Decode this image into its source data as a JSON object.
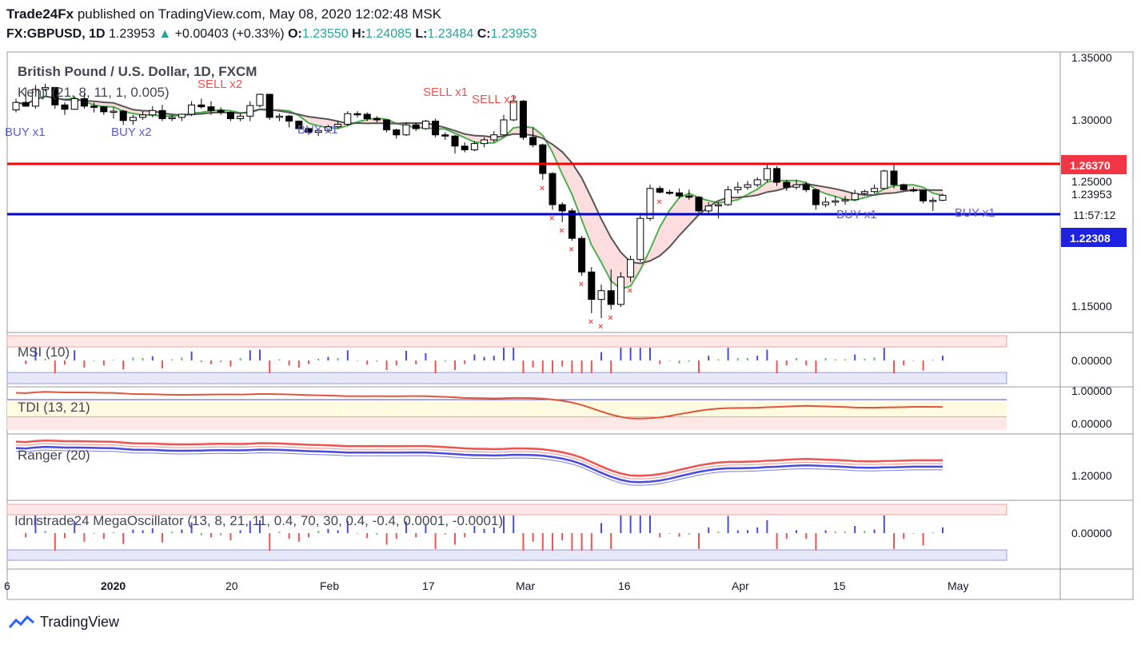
{
  "header": {
    "publisher": "Trade24Fx",
    "published_text": "published on TradingView.com, May 08, 2020 12:02:48 MSK",
    "symbol": "FX:GBPUSD, 1D",
    "last": "1.23953",
    "change": "+0.00403 (+0.33%)",
    "o_label": "O:",
    "o": "1.23550",
    "h_label": "H:",
    "h": "1.24085",
    "l_label": "L:",
    "l": "1.23484",
    "c_label": "C:",
    "c": "1.23953"
  },
  "price_pane": {
    "title": "British Pound / U.S. Dollar, 1D, FXCM",
    "indicator": "Kenji (21, 8, 11, 1, 0.005)",
    "axis_ticks": [
      "1.35000",
      "1.30000",
      "1.25000",
      "1.15000"
    ],
    "resistance_label": "1.26370",
    "support_label": "1.22308",
    "last_label": "1.23953",
    "countdown": "11:57:12",
    "signals": [
      {
        "text": "BUY x1",
        "kind": "buy"
      },
      {
        "text": "SELL x2",
        "kind": "sell"
      },
      {
        "text": "BUY x2",
        "kind": "buy"
      },
      {
        "text": "SELL x1",
        "kind": "sell"
      },
      {
        "text": "SELL x2",
        "kind": "sell"
      },
      {
        "text": "BUY x1",
        "kind": "buy"
      },
      {
        "text": "BUY x1",
        "kind": "buy"
      },
      {
        "text": "BUY x1",
        "kind": "buy"
      }
    ]
  },
  "panes": {
    "msi": {
      "title": "MSI (10)",
      "tick": "0.00000"
    },
    "tdi": {
      "title": "TDI (13, 21)",
      "ticks": [
        "1.00000",
        "0.00000"
      ]
    },
    "ranger": {
      "title": "Ranger (20)",
      "tick": "1.20000"
    },
    "mega": {
      "title": "Idnistrade24 MegaOscillator (13, 8, 21, 11, 0.4, 70, 30, 0.4, -0.4, 0.0001, -0.0001)",
      "tick": "0.00000"
    }
  },
  "x_axis": [
    "2020",
    "20",
    "Feb",
    "17",
    "Mar",
    "16",
    "Apr",
    "15",
    "May"
  ],
  "branding": "TradingView",
  "colors": {
    "up": "#ffffff",
    "down": "#000000",
    "resistance": "#ff0000",
    "support": "#0000cc",
    "buy": "#5b5bd6",
    "sell": "#ef5350",
    "label_red": "#f23645",
    "label_blue": "#1e22e0"
  },
  "chart_data": {
    "type": "candlestick",
    "title": "British Pound / U.S. Dollar, 1D, FXCM",
    "ylim": [
      1.12,
      1.36
    ],
    "resistance": 1.2637,
    "support": 1.22308,
    "candles": [
      {
        "d": "2019-12-27",
        "o": 1.308,
        "h": 1.317,
        "l": 1.306,
        "c": 1.314
      },
      {
        "d": "2019-12-30",
        "o": 1.314,
        "h": 1.326,
        "l": 1.3105,
        "c": 1.311
      },
      {
        "d": "2019-12-31",
        "o": 1.311,
        "h": 1.328,
        "l": 1.309,
        "c": 1.3245
      },
      {
        "d": "2020-01-01",
        "o": 1.3245,
        "h": 1.329,
        "l": 1.323,
        "c": 1.326
      },
      {
        "d": "2020-01-02",
        "o": 1.326,
        "h": 1.3265,
        "l": 1.309,
        "c": 1.312
      },
      {
        "d": "2020-01-03",
        "o": 1.312,
        "h": 1.314,
        "l": 1.304,
        "c": 1.3085
      },
      {
        "d": "2020-01-06",
        "o": 1.3085,
        "h": 1.319,
        "l": 1.308,
        "c": 1.317
      },
      {
        "d": "2020-01-07",
        "o": 1.317,
        "h": 1.321,
        "l": 1.309,
        "c": 1.311
      },
      {
        "d": "2020-01-08",
        "o": 1.311,
        "h": 1.314,
        "l": 1.306,
        "c": 1.3105
      },
      {
        "d": "2020-01-09",
        "o": 1.3105,
        "h": 1.311,
        "l": 1.304,
        "c": 1.3065
      },
      {
        "d": "2020-01-10",
        "o": 1.3065,
        "h": 1.31,
        "l": 1.301,
        "c": 1.307
      },
      {
        "d": "2020-01-13",
        "o": 1.307,
        "h": 1.308,
        "l": 1.296,
        "c": 1.2995
      },
      {
        "d": "2020-01-14",
        "o": 1.2995,
        "h": 1.304,
        "l": 1.296,
        "c": 1.302
      },
      {
        "d": "2020-01-15",
        "o": 1.302,
        "h": 1.307,
        "l": 1.3,
        "c": 1.304
      },
      {
        "d": "2020-01-16",
        "o": 1.304,
        "h": 1.311,
        "l": 1.302,
        "c": 1.3075
      },
      {
        "d": "2020-01-17",
        "o": 1.3075,
        "h": 1.312,
        "l": 1.299,
        "c": 1.301
      },
      {
        "d": "2020-01-20",
        "o": 1.301,
        "h": 1.304,
        "l": 1.299,
        "c": 1.302
      },
      {
        "d": "2020-01-21",
        "o": 1.302,
        "h": 1.305,
        "l": 1.299,
        "c": 1.3045
      },
      {
        "d": "2020-01-22",
        "o": 1.3045,
        "h": 1.315,
        "l": 1.303,
        "c": 1.312
      },
      {
        "d": "2020-01-23",
        "o": 1.312,
        "h": 1.317,
        "l": 1.309,
        "c": 1.3105
      },
      {
        "d": "2020-01-24",
        "o": 1.3105,
        "h": 1.315,
        "l": 1.304,
        "c": 1.3075
      },
      {
        "d": "2020-01-27",
        "o": 1.3075,
        "h": 1.31,
        "l": 1.304,
        "c": 1.306
      },
      {
        "d": "2020-01-28",
        "o": 1.306,
        "h": 1.307,
        "l": 1.299,
        "c": 1.301
      },
      {
        "d": "2020-01-29",
        "o": 1.301,
        "h": 1.305,
        "l": 1.299,
        "c": 1.303
      },
      {
        "d": "2020-01-30",
        "o": 1.303,
        "h": 1.315,
        "l": 1.299,
        "c": 1.3115
      },
      {
        "d": "2020-01-31",
        "o": 1.3115,
        "h": 1.321,
        "l": 1.31,
        "c": 1.3205
      },
      {
        "d": "2020-02-03",
        "o": 1.3205,
        "h": 1.321,
        "l": 1.3,
        "c": 1.302
      },
      {
        "d": "2020-02-04",
        "o": 1.302,
        "h": 1.305,
        "l": 1.299,
        "c": 1.303
      },
      {
        "d": "2020-02-05",
        "o": 1.303,
        "h": 1.304,
        "l": 1.294,
        "c": 1.299
      },
      {
        "d": "2020-02-06",
        "o": 1.299,
        "h": 1.2995,
        "l": 1.29,
        "c": 1.293
      },
      {
        "d": "2020-02-07",
        "o": 1.293,
        "h": 1.294,
        "l": 1.288,
        "c": 1.29
      },
      {
        "d": "2020-02-10",
        "o": 1.29,
        "h": 1.2925,
        "l": 1.287,
        "c": 1.2915
      },
      {
        "d": "2020-02-11",
        "o": 1.2915,
        "h": 1.296,
        "l": 1.29,
        "c": 1.2945
      },
      {
        "d": "2020-02-12",
        "o": 1.2945,
        "h": 1.299,
        "l": 1.293,
        "c": 1.2965
      },
      {
        "d": "2020-02-13",
        "o": 1.2965,
        "h": 1.307,
        "l": 1.295,
        "c": 1.305
      },
      {
        "d": "2020-02-14",
        "o": 1.305,
        "h": 1.307,
        "l": 1.302,
        "c": 1.3045
      },
      {
        "d": "2020-02-17",
        "o": 1.3045,
        "h": 1.306,
        "l": 1.299,
        "c": 1.301
      },
      {
        "d": "2020-02-18",
        "o": 1.301,
        "h": 1.303,
        "l": 1.298,
        "c": 1.3
      },
      {
        "d": "2020-02-19",
        "o": 1.3,
        "h": 1.3,
        "l": 1.29,
        "c": 1.292
      },
      {
        "d": "2020-02-20",
        "o": 1.292,
        "h": 1.293,
        "l": 1.285,
        "c": 1.288
      },
      {
        "d": "2020-02-21",
        "o": 1.288,
        "h": 1.298,
        "l": 1.287,
        "c": 1.296
      },
      {
        "d": "2020-02-24",
        "o": 1.296,
        "h": 1.298,
        "l": 1.291,
        "c": 1.293
      },
      {
        "d": "2020-02-25",
        "o": 1.293,
        "h": 1.3,
        "l": 1.292,
        "c": 1.299
      },
      {
        "d": "2020-02-26",
        "o": 1.299,
        "h": 1.301,
        "l": 1.286,
        "c": 1.288
      },
      {
        "d": "2020-02-27",
        "o": 1.288,
        "h": 1.29,
        "l": 1.284,
        "c": 1.287
      },
      {
        "d": "2020-02-28",
        "o": 1.287,
        "h": 1.288,
        "l": 1.273,
        "c": 1.279
      },
      {
        "d": "2020-03-02",
        "o": 1.279,
        "h": 1.282,
        "l": 1.274,
        "c": 1.276
      },
      {
        "d": "2020-03-03",
        "o": 1.276,
        "h": 1.283,
        "l": 1.275,
        "c": 1.281
      },
      {
        "d": "2020-03-04",
        "o": 1.281,
        "h": 1.286,
        "l": 1.278,
        "c": 1.284
      },
      {
        "d": "2020-03-05",
        "o": 1.284,
        "h": 1.291,
        "l": 1.282,
        "c": 1.288
      },
      {
        "d": "2020-03-06",
        "o": 1.288,
        "h": 1.304,
        "l": 1.287,
        "c": 1.3
      },
      {
        "d": "2020-03-09",
        "o": 1.3,
        "h": 1.32,
        "l": 1.299,
        "c": 1.315
      },
      {
        "d": "2020-03-10",
        "o": 1.315,
        "h": 1.316,
        "l": 1.284,
        "c": 1.286
      },
      {
        "d": "2020-03-11",
        "o": 1.286,
        "h": 1.294,
        "l": 1.278,
        "c": 1.28
      },
      {
        "d": "2020-03-12",
        "o": 1.28,
        "h": 1.281,
        "l": 1.252,
        "c": 1.257
      },
      {
        "d": "2020-03-13",
        "o": 1.257,
        "h": 1.258,
        "l": 1.228,
        "c": 1.232
      },
      {
        "d": "2020-03-16",
        "o": 1.232,
        "h": 1.234,
        "l": 1.218,
        "c": 1.227
      },
      {
        "d": "2020-03-17",
        "o": 1.227,
        "h": 1.229,
        "l": 1.203,
        "c": 1.205
      },
      {
        "d": "2020-03-18",
        "o": 1.205,
        "h": 1.207,
        "l": 1.175,
        "c": 1.178
      },
      {
        "d": "2020-03-19",
        "o": 1.178,
        "h": 1.182,
        "l": 1.145,
        "c": 1.156
      },
      {
        "d": "2020-03-20",
        "o": 1.156,
        "h": 1.168,
        "l": 1.141,
        "c": 1.163
      },
      {
        "d": "2020-03-23",
        "o": 1.163,
        "h": 1.18,
        "l": 1.148,
        "c": 1.152
      },
      {
        "d": "2020-03-24",
        "o": 1.152,
        "h": 1.178,
        "l": 1.15,
        "c": 1.174
      },
      {
        "d": "2020-03-25",
        "o": 1.174,
        "h": 1.191,
        "l": 1.17,
        "c": 1.188
      },
      {
        "d": "2020-03-26",
        "o": 1.188,
        "h": 1.224,
        "l": 1.186,
        "c": 1.221
      },
      {
        "d": "2020-03-27",
        "o": 1.221,
        "h": 1.248,
        "l": 1.219,
        "c": 1.245
      },
      {
        "d": "2020-03-30",
        "o": 1.245,
        "h": 1.247,
        "l": 1.241,
        "c": 1.242
      },
      {
        "d": "2020-03-31",
        "o": 1.242,
        "h": 1.244,
        "l": 1.24,
        "c": 1.2415
      },
      {
        "d": "2020-04-01",
        "o": 1.2415,
        "h": 1.245,
        "l": 1.237,
        "c": 1.239
      },
      {
        "d": "2020-04-02",
        "o": 1.239,
        "h": 1.244,
        "l": 1.236,
        "c": 1.238
      },
      {
        "d": "2020-04-03",
        "o": 1.238,
        "h": 1.239,
        "l": 1.225,
        "c": 1.227
      },
      {
        "d": "2020-04-06",
        "o": 1.227,
        "h": 1.234,
        "l": 1.225,
        "c": 1.231
      },
      {
        "d": "2020-04-07",
        "o": 1.231,
        "h": 1.234,
        "l": 1.221,
        "c": 1.232
      },
      {
        "d": "2020-04-08",
        "o": 1.232,
        "h": 1.247,
        "l": 1.231,
        "c": 1.244
      },
      {
        "d": "2020-04-09",
        "o": 1.244,
        "h": 1.25,
        "l": 1.241,
        "c": 1.246
      },
      {
        "d": "2020-04-10",
        "o": 1.246,
        "h": 1.251,
        "l": 1.244,
        "c": 1.248
      },
      {
        "d": "2020-04-13",
        "o": 1.248,
        "h": 1.254,
        "l": 1.246,
        "c": 1.252
      },
      {
        "d": "2020-04-14",
        "o": 1.252,
        "h": 1.264,
        "l": 1.25,
        "c": 1.261
      },
      {
        "d": "2020-04-15",
        "o": 1.261,
        "h": 1.263,
        "l": 1.247,
        "c": 1.25
      },
      {
        "d": "2020-04-16",
        "o": 1.25,
        "h": 1.252,
        "l": 1.243,
        "c": 1.246
      },
      {
        "d": "2020-04-17",
        "o": 1.246,
        "h": 1.252,
        "l": 1.244,
        "c": 1.248
      },
      {
        "d": "2020-04-20",
        "o": 1.248,
        "h": 1.25,
        "l": 1.242,
        "c": 1.244
      },
      {
        "d": "2020-04-21",
        "o": 1.244,
        "h": 1.245,
        "l": 1.228,
        "c": 1.232
      },
      {
        "d": "2020-04-22",
        "o": 1.232,
        "h": 1.238,
        "l": 1.23,
        "c": 1.234
      },
      {
        "d": "2020-04-23",
        "o": 1.234,
        "h": 1.239,
        "l": 1.231,
        "c": 1.235
      },
      {
        "d": "2020-04-24",
        "o": 1.235,
        "h": 1.239,
        "l": 1.232,
        "c": 1.236
      },
      {
        "d": "2020-04-27",
        "o": 1.236,
        "h": 1.244,
        "l": 1.235,
        "c": 1.241
      },
      {
        "d": "2020-04-28",
        "o": 1.241,
        "h": 1.244,
        "l": 1.24,
        "c": 1.2425
      },
      {
        "d": "2020-04-29",
        "o": 1.2425,
        "h": 1.248,
        "l": 1.241,
        "c": 1.245
      },
      {
        "d": "2020-04-30",
        "o": 1.245,
        "h": 1.26,
        "l": 1.244,
        "c": 1.259
      },
      {
        "d": "2020-05-01",
        "o": 1.259,
        "h": 1.264,
        "l": 1.245,
        "c": 1.248
      },
      {
        "d": "2020-05-04",
        "o": 1.248,
        "h": 1.249,
        "l": 1.243,
        "c": 1.244
      },
      {
        "d": "2020-05-05",
        "o": 1.244,
        "h": 1.246,
        "l": 1.242,
        "c": 1.2435
      },
      {
        "d": "2020-05-06",
        "o": 1.2435,
        "h": 1.244,
        "l": 1.233,
        "c": 1.235
      },
      {
        "d": "2020-05-07",
        "o": 1.235,
        "h": 1.238,
        "l": 1.227,
        "c": 1.2355
      },
      {
        "d": "2020-05-08",
        "o": 1.2355,
        "h": 1.2409,
        "l": 1.2348,
        "c": 1.2395
      }
    ]
  }
}
